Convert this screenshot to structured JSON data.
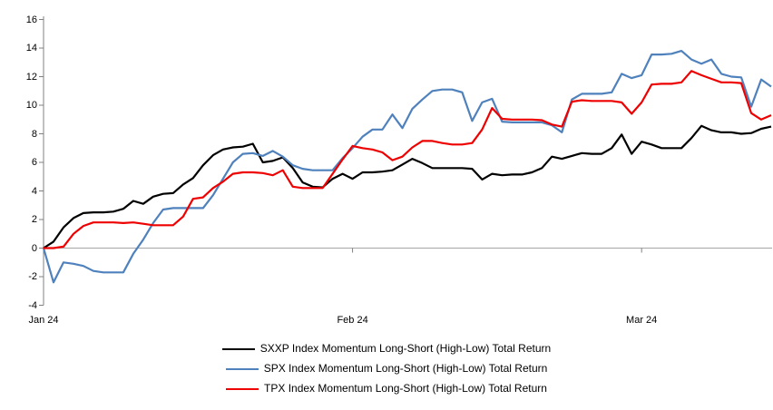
{
  "chart_data": {
    "type": "line",
    "title": "",
    "x_axis": {
      "labels": [
        {
          "label": "Jan 24",
          "day": 0
        },
        {
          "label": "Feb 24",
          "day": 31
        },
        {
          "label": "Mar 24",
          "day": 60
        }
      ],
      "total_points": 74
    },
    "y_axis": {
      "min": -4,
      "max": 16,
      "tick_step": 2,
      "ticks": [
        16,
        14,
        12,
        10,
        8,
        6,
        4,
        2,
        0,
        -2,
        -4
      ]
    },
    "grid": "zero-line-only",
    "legend_position": "bottom",
    "axis_color": "#808080",
    "zero_line_color": "#A6A6A6",
    "series": [
      {
        "name": "SXXP Index Momentum Long-Short (High-Low) Total Return",
        "color": "#000000",
        "values": [
          0,
          0.45,
          1.45,
          2.1,
          2.45,
          2.5,
          2.5,
          2.55,
          2.75,
          3.3,
          3.1,
          3.6,
          3.8,
          3.85,
          4.45,
          4.9,
          5.8,
          6.5,
          6.9,
          7.05,
          7.1,
          7.3,
          6.0,
          6.1,
          6.35,
          5.6,
          4.6,
          4.3,
          4.25,
          4.85,
          5.2,
          4.85,
          5.3,
          5.3,
          5.35,
          5.45,
          5.85,
          6.25,
          5.95,
          5.6,
          5.6,
          5.6,
          5.6,
          5.55,
          4.8,
          5.2,
          5.1,
          5.15,
          5.15,
          5.3,
          5.6,
          6.4,
          6.25,
          6.45,
          6.65,
          6.6,
          6.6,
          7.0,
          7.95,
          6.6,
          7.45,
          7.25,
          7.0,
          7.0,
          7.0,
          7.7,
          8.55,
          8.25,
          8.1,
          8.1,
          8.0,
          8.05,
          8.35,
          8.5
        ]
      },
      {
        "name": "SPX Index Momentum Long-Short (High-Low) Total Return",
        "color": "#4F81BD",
        "values": [
          0,
          -2.4,
          -1.0,
          -1.1,
          -1.25,
          -1.6,
          -1.7,
          -1.7,
          -1.7,
          -0.4,
          0.6,
          1.75,
          2.7,
          2.8,
          2.8,
          2.8,
          2.8,
          3.7,
          4.85,
          6.0,
          6.6,
          6.65,
          6.45,
          6.8,
          6.4,
          5.8,
          5.55,
          5.45,
          5.45,
          5.45,
          6.3,
          7.0,
          7.8,
          8.3,
          8.3,
          9.35,
          8.4,
          9.75,
          10.4,
          11.0,
          11.1,
          11.1,
          10.9,
          8.9,
          10.2,
          10.45,
          8.85,
          8.8,
          8.8,
          8.8,
          8.8,
          8.6,
          8.1,
          10.4,
          10.8,
          10.8,
          10.8,
          10.9,
          12.2,
          11.9,
          12.1,
          13.55,
          13.55,
          13.6,
          13.8,
          13.2,
          12.9,
          13.2,
          12.2,
          12.0,
          11.95,
          9.9,
          11.8,
          11.3
        ]
      },
      {
        "name": "TPX Index Momentum Long-Short (High-Low) Total Return",
        "color": "#EE0000",
        "values": [
          0,
          0,
          0.1,
          1.0,
          1.55,
          1.8,
          1.8,
          1.8,
          1.75,
          1.8,
          1.7,
          1.6,
          1.6,
          1.6,
          2.2,
          3.45,
          3.55,
          4.2,
          4.65,
          5.2,
          5.3,
          5.3,
          5.25,
          5.1,
          5.45,
          4.3,
          4.2,
          4.2,
          4.2,
          5.2,
          6.2,
          7.15,
          7.0,
          6.9,
          6.7,
          6.15,
          6.4,
          7.05,
          7.5,
          7.5,
          7.35,
          7.25,
          7.25,
          7.35,
          8.3,
          9.8,
          9.05,
          9.0,
          9.0,
          9.0,
          8.95,
          8.65,
          8.5,
          10.25,
          10.35,
          10.3,
          10.3,
          10.3,
          10.2,
          9.4,
          10.2,
          11.45,
          11.5,
          11.5,
          11.6,
          12.4,
          12.1,
          11.85,
          11.6,
          11.6,
          11.55,
          9.45,
          9.0,
          9.3
        ]
      }
    ]
  }
}
